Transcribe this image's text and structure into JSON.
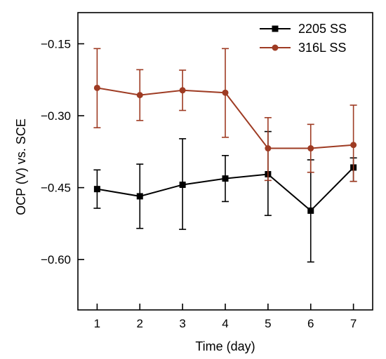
{
  "chart_data": {
    "type": "line",
    "title": "",
    "xlabel": "Time (day)",
    "ylabel": "OCP (V) vs. SCE",
    "x": [
      1,
      2,
      3,
      4,
      5,
      6,
      7
    ],
    "xlim": [
      0.55,
      7.45
    ],
    "ylim": [
      -0.705,
      -0.085
    ],
    "x_ticks": [
      1,
      2,
      3,
      4,
      5,
      6,
      7
    ],
    "x_tick_labels": [
      "1",
      "2",
      "3",
      "4",
      "5",
      "6",
      "7"
    ],
    "y_ticks": [
      -0.15,
      -0.3,
      -0.45,
      -0.6
    ],
    "y_tick_labels": [
      "-0.15",
      "-0.30",
      "-0.45",
      "-0.60"
    ],
    "grid": false,
    "legend_position": "top-right",
    "series": [
      {
        "name": "2205 SS",
        "color": "#000000",
        "marker": "square",
        "values": [
          -0.453,
          -0.468,
          -0.444,
          -0.431,
          -0.422,
          -0.498,
          -0.408
        ],
        "error_low": [
          -0.493,
          -0.535,
          -0.537,
          -0.479,
          -0.508,
          -0.605,
          -0.437
        ],
        "error_high": [
          -0.413,
          -0.401,
          -0.348,
          -0.383,
          -0.333,
          -0.392,
          -0.388
        ]
      },
      {
        "name": "316L SS",
        "color": "#9e3b23",
        "marker": "circle",
        "values": [
          -0.242,
          -0.257,
          -0.247,
          -0.252,
          -0.368,
          -0.368,
          -0.361
        ],
        "error_low": [
          -0.325,
          -0.31,
          -0.289,
          -0.345,
          -0.435,
          -0.418,
          -0.437
        ],
        "error_high": [
          -0.16,
          -0.204,
          -0.205,
          -0.16,
          -0.304,
          -0.318,
          -0.278
        ]
      }
    ]
  }
}
